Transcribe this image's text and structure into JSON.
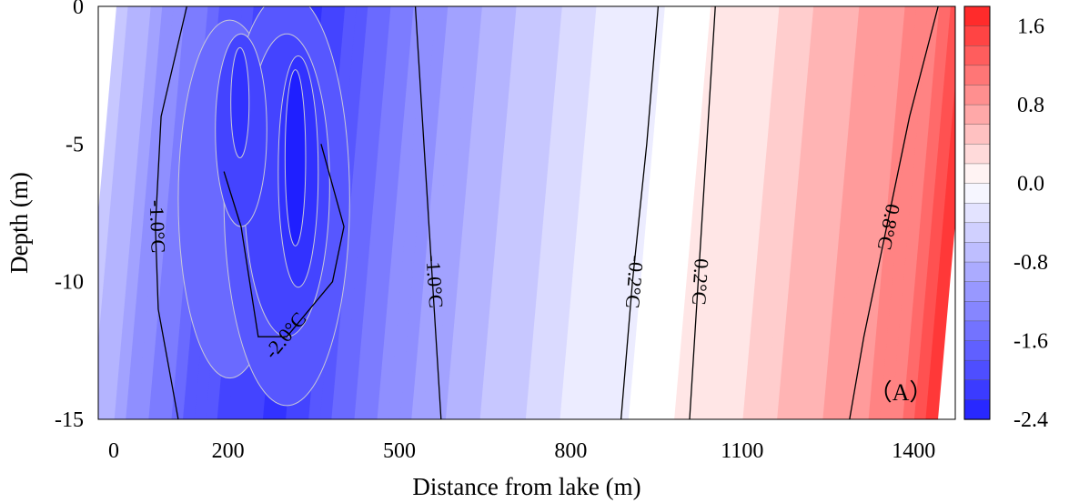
{
  "chart_data": {
    "type": "heatmap",
    "subtype": "filled-contour",
    "xlabel": "Distance from lake (m)",
    "ylabel": "Depth (m)",
    "xlim": [
      0,
      1500
    ],
    "ylim": [
      -15,
      0
    ],
    "x_ticks": [
      {
        "value": 0,
        "label": "0"
      },
      {
        "value": 200,
        "label": "200"
      },
      {
        "value": 500,
        "label": "500"
      },
      {
        "value": 800,
        "label": "800"
      },
      {
        "value": 1100,
        "label": "1100"
      },
      {
        "value": 1400,
        "label": "1400"
      }
    ],
    "y_ticks": [
      {
        "value": 0,
        "label": "0"
      },
      {
        "value": -5,
        "label": "-5"
      },
      {
        "value": -10,
        "label": "-10"
      },
      {
        "value": -15,
        "label": "-15"
      }
    ],
    "colorbar": {
      "range": [
        -2.4,
        1.8
      ],
      "step": 0.2,
      "low_color": "#1f1fff",
      "mid_color": "#ffffff",
      "high_color": "#ff1f1f",
      "ticks": [
        {
          "value": 1.6,
          "label": "1.6"
        },
        {
          "value": 0.8,
          "label": "0.8"
        },
        {
          "value": 0.0,
          "label": "0.0"
        },
        {
          "value": -0.8,
          "label": "-0.8"
        },
        {
          "value": -1.6,
          "label": "-1.6"
        },
        {
          "value": -2.4,
          "label": "-2.4"
        }
      ]
    },
    "isolines": [
      {
        "label": "-1.0°C",
        "points": [
          [
            155,
            0
          ],
          [
            110,
            -4
          ],
          [
            100,
            -8
          ],
          [
            105,
            -11
          ],
          [
            140,
            -15
          ]
        ]
      },
      {
        "label": "-2.0°C",
        "points": [
          [
            220,
            -6
          ],
          [
            250,
            -8
          ],
          [
            280,
            -12
          ],
          [
            330,
            -12
          ],
          [
            410,
            -10
          ],
          [
            430,
            -8
          ],
          [
            390,
            -5
          ]
        ]
      },
      {
        "label": "-1.0°C",
        "points": [
          [
            555,
            0
          ],
          [
            570,
            -5
          ],
          [
            585,
            -10
          ],
          [
            600,
            -15
          ]
        ]
      },
      {
        "label": "-0.2°C",
        "points": [
          [
            980,
            0
          ],
          [
            960,
            -5
          ],
          [
            935,
            -10
          ],
          [
            915,
            -15
          ]
        ]
      },
      {
        "label": "0.2°C",
        "points": [
          [
            1080,
            0
          ],
          [
            1065,
            -5
          ],
          [
            1050,
            -10
          ],
          [
            1035,
            -15
          ]
        ]
      },
      {
        "label": "0.8°C",
        "points": [
          [
            1470,
            0
          ],
          [
            1420,
            -4
          ],
          [
            1380,
            -8
          ],
          [
            1340,
            -12
          ],
          [
            1315,
            -15
          ]
        ]
      }
    ],
    "field_samples": [
      {
        "x": 0,
        "depth": -2,
        "value": -0.6
      },
      {
        "x": 250,
        "depth": -5,
        "value": -2.2
      },
      {
        "x": 350,
        "depth": -6,
        "value": -2.4
      },
      {
        "x": 350,
        "depth": -12,
        "value": -1.8
      },
      {
        "x": 550,
        "depth": -7,
        "value": -1.0
      },
      {
        "x": 850,
        "depth": -7,
        "value": -0.3
      },
      {
        "x": 1000,
        "depth": -7,
        "value": 0.0
      },
      {
        "x": 1200,
        "depth": -7,
        "value": 0.4
      },
      {
        "x": 1450,
        "depth": -7,
        "value": 1.0
      },
      {
        "x": 1500,
        "depth": -14,
        "value": 1.8
      }
    ],
    "annotation": "（A）"
  }
}
